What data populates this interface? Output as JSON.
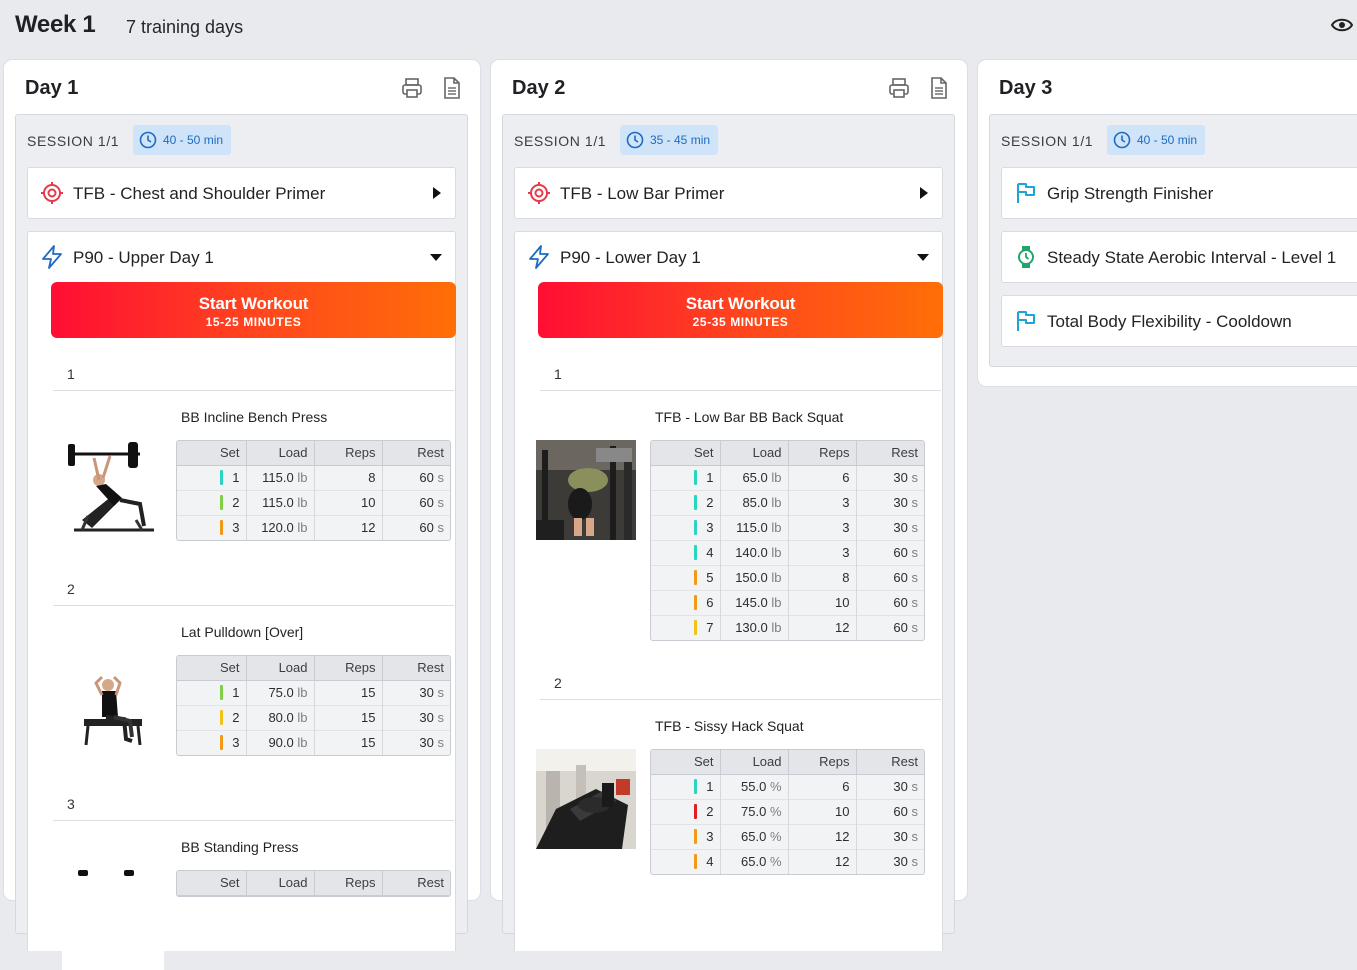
{
  "header": {
    "week_title": "Week 1",
    "subtitle": "7 training days",
    "view_icon": "eye-icon"
  },
  "colors": {
    "accent_blue": "#1f6bc2",
    "badge_bg": "#cfe4f8",
    "primer_red": "#e8394b",
    "finisher_teal": "#1aa7d6",
    "aerobic_green": "#22a56b",
    "start_gradient": [
      "#ff0e33",
      "#ff6e07"
    ]
  },
  "days": [
    {
      "title": "Day 1",
      "session_label": "SESSION 1/1",
      "duration": "40 - 50 min",
      "primer": {
        "label": "TFB - Chest and Shoulder Primer",
        "icon": "target-icon"
      },
      "workout": {
        "label": "P90 - Upper Day 1",
        "icon": "lightning-icon",
        "start_label": "Start Workout",
        "start_sub": "15-25 MINUTES",
        "exercises": [
          {
            "num": "1",
            "name": "BB Incline Bench Press",
            "headers": [
              "Set",
              "Load",
              "Reps",
              "Rest"
            ],
            "sets": [
              {
                "set": "1",
                "load": "115.0",
                "unit": "lb",
                "reps": "8",
                "rest": "60",
                "rest_unit": "s",
                "color": "#2ad4c0"
              },
              {
                "set": "2",
                "load": "115.0",
                "unit": "lb",
                "reps": "10",
                "rest": "60",
                "rest_unit": "s",
                "color": "#7fd048"
              },
              {
                "set": "3",
                "load": "120.0",
                "unit": "lb",
                "reps": "12",
                "rest": "60",
                "rest_unit": "s",
                "color": "#f29a18"
              }
            ]
          },
          {
            "num": "2",
            "name": "Lat Pulldown [Over]",
            "headers": [
              "Set",
              "Load",
              "Reps",
              "Rest"
            ],
            "sets": [
              {
                "set": "1",
                "load": "75.0",
                "unit": "lb",
                "reps": "15",
                "rest": "30",
                "rest_unit": "s",
                "color": "#7fd048"
              },
              {
                "set": "2",
                "load": "80.0",
                "unit": "lb",
                "reps": "15",
                "rest": "30",
                "rest_unit": "s",
                "color": "#f2c21a"
              },
              {
                "set": "3",
                "load": "90.0",
                "unit": "lb",
                "reps": "15",
                "rest": "30",
                "rest_unit": "s",
                "color": "#f29a18"
              }
            ]
          },
          {
            "num": "3",
            "name": "BB Standing Press",
            "headers": [
              "Set",
              "Load",
              "Reps",
              "Rest"
            ],
            "sets": []
          }
        ]
      }
    },
    {
      "title": "Day 2",
      "session_label": "SESSION 1/1",
      "duration": "35 - 45 min",
      "primer": {
        "label": "TFB - Low Bar Primer",
        "icon": "target-icon"
      },
      "workout": {
        "label": "P90 - Lower Day 1",
        "icon": "lightning-icon",
        "start_label": "Start Workout",
        "start_sub": "25-35 MINUTES",
        "exercises": [
          {
            "num": "1",
            "name": "TFB - Low Bar BB Back Squat",
            "headers": [
              "Set",
              "Load",
              "Reps",
              "Rest"
            ],
            "sets": [
              {
                "set": "1",
                "load": "65.0",
                "unit": "lb",
                "reps": "6",
                "rest": "30",
                "rest_unit": "s",
                "color": "#2ad4c0"
              },
              {
                "set": "2",
                "load": "85.0",
                "unit": "lb",
                "reps": "3",
                "rest": "30",
                "rest_unit": "s",
                "color": "#2ad4c0"
              },
              {
                "set": "3",
                "load": "115.0",
                "unit": "lb",
                "reps": "3",
                "rest": "30",
                "rest_unit": "s",
                "color": "#2ad4c0"
              },
              {
                "set": "4",
                "load": "140.0",
                "unit": "lb",
                "reps": "3",
                "rest": "60",
                "rest_unit": "s",
                "color": "#2ad4c0"
              },
              {
                "set": "5",
                "load": "150.0",
                "unit": "lb",
                "reps": "8",
                "rest": "60",
                "rest_unit": "s",
                "color": "#f29a18"
              },
              {
                "set": "6",
                "load": "145.0",
                "unit": "lb",
                "reps": "10",
                "rest": "60",
                "rest_unit": "s",
                "color": "#f29a18"
              },
              {
                "set": "7",
                "load": "130.0",
                "unit": "lb",
                "reps": "12",
                "rest": "60",
                "rest_unit": "s",
                "color": "#f2c21a"
              }
            ]
          },
          {
            "num": "2",
            "name": "TFB - Sissy Hack Squat",
            "headers": [
              "Set",
              "Load",
              "Reps",
              "Rest"
            ],
            "sets": [
              {
                "set": "1",
                "load": "55.0",
                "unit": "%",
                "reps": "6",
                "rest": "30",
                "rest_unit": "s",
                "color": "#2ad4c0"
              },
              {
                "set": "2",
                "load": "75.0",
                "unit": "%",
                "reps": "10",
                "rest": "60",
                "rest_unit": "s",
                "color": "#e02020"
              },
              {
                "set": "3",
                "load": "65.0",
                "unit": "%",
                "reps": "12",
                "rest": "30",
                "rest_unit": "s",
                "color": "#f29a18"
              },
              {
                "set": "4",
                "load": "65.0",
                "unit": "%",
                "reps": "12",
                "rest": "30",
                "rest_unit": "s",
                "color": "#f29a18"
              }
            ]
          }
        ]
      }
    },
    {
      "title": "Day 3",
      "session_label": "SESSION 1/1",
      "duration": "40 - 50 min",
      "blocks": [
        {
          "label": "Grip Strength Finisher",
          "icon": "flag-icon"
        },
        {
          "label": "Steady State Aerobic Interval - Level 1",
          "icon": "watch-icon"
        },
        {
          "label": "Total Body Flexibility - Cooldown",
          "icon": "flag-icon"
        }
      ]
    }
  ]
}
